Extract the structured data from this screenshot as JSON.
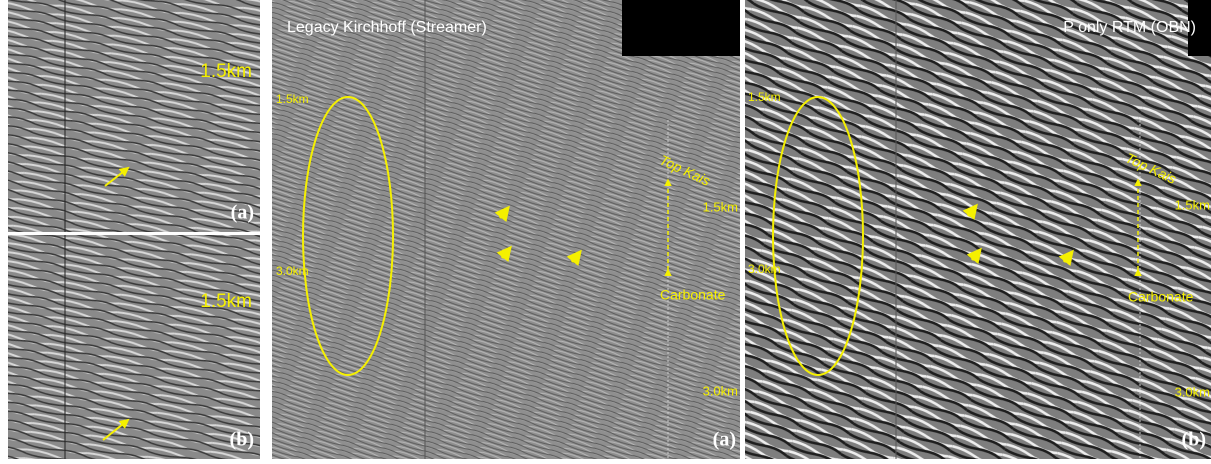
{
  "left_top": {
    "depth": "1.5km",
    "tag": "(a)"
  },
  "left_bottom": {
    "depth": "1.5km",
    "tag": "(b)"
  },
  "middle": {
    "title": "Legacy Kirchhoff (Streamer)",
    "depth_top": "1.5km",
    "depth_mid": "3.0km",
    "horizon": "Top Kais",
    "depth_right": "1.5km",
    "target": "Carbonate",
    "depth_bottom": "3.0km",
    "tag": "(a)"
  },
  "right": {
    "title": "P only RTM (OBN)",
    "depth_top": "1.5km",
    "depth_mid": "3.0km",
    "horizon": "Top Kais",
    "depth_right": "1.5km",
    "target": "Carbonate",
    "depth_bottom": "3.0km",
    "tag": "(b)"
  }
}
